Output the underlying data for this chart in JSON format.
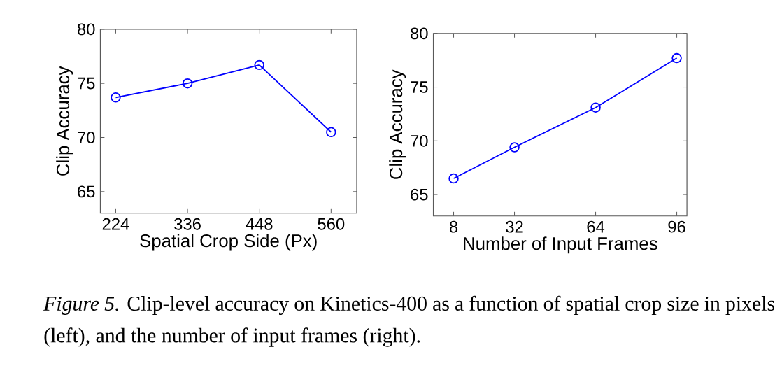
{
  "chart_data": [
    {
      "type": "line",
      "xlabel": "Spatial Crop Side (Px)",
      "ylabel": "Clip Accuracy",
      "x": [
        224,
        336,
        448,
        560
      ],
      "values": [
        73.7,
        75.0,
        76.7,
        70.5
      ],
      "color": "#0000ff",
      "marker": "circle",
      "line_style": "solid",
      "xlim": [
        200,
        600
      ],
      "ylim": [
        63,
        80
      ],
      "xticks": [
        224,
        336,
        448,
        560
      ],
      "yticks": [
        65,
        70,
        75,
        80
      ],
      "annotations": [
        "*Figure 5.* Clip-level accuracy on Kinetics-400 as a function of spatial crop size in pixels (left), and the number of input frames (right)."
      ]
    },
    {
      "type": "line",
      "xlabel": "Number of Input Frames",
      "ylabel": "Clip Accuracy",
      "x": [
        8,
        32,
        64,
        96
      ],
      "values": [
        66.5,
        69.4,
        73.1,
        77.7
      ],
      "color": "#0000ff",
      "marker": "circle",
      "line_style": "solid",
      "xlim": [
        0,
        100
      ],
      "ylim": [
        63,
        80
      ],
      "xticks": [
        8,
        32,
        64,
        96
      ],
      "yticks": [
        65,
        70,
        75,
        80
      ]
    }
  ]
}
